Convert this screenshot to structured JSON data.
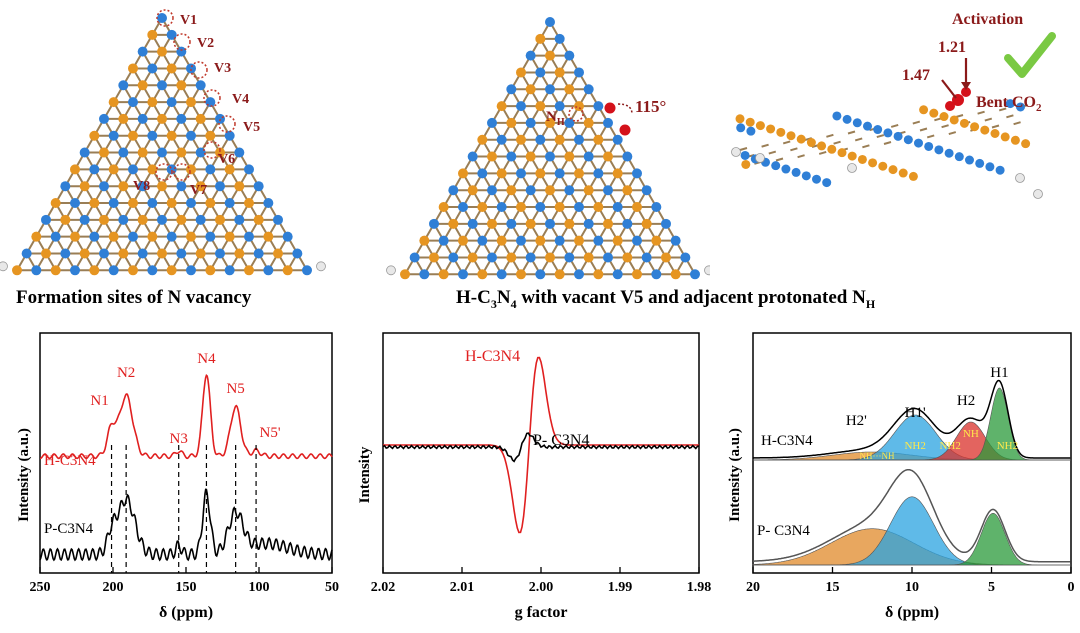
{
  "top": {
    "caption_left": "Formation sites of N vacancy",
    "caption_right": "H-C3N4 with vacant V5 and adjacent protonated NH",
    "vacancy_labels": [
      "V1",
      "V2",
      "V3",
      "V4",
      "V5",
      "V6",
      "V7",
      "V8"
    ],
    "middle_labels": {
      "nh": "NH",
      "angle": "115°"
    },
    "right_labels": {
      "activation": "Activation",
      "d1": "1.21",
      "d2": "1.47",
      "co2": "Bent CO2"
    }
  },
  "chart_data": [
    {
      "type": "line",
      "xlabel": "δ (ppm)",
      "ylabel": "Intensity (a.u.)",
      "xlim": [
        250,
        50
      ],
      "x_reversed": true,
      "xticks": [
        "250",
        "200",
        "150",
        "100",
        "50"
      ],
      "series": [
        {
          "name": "H-C3N4",
          "color": "#e02020",
          "peaks": [
            {
              "label": "N1",
              "x": 201
            },
            {
              "label": "N2",
              "x": 191
            },
            {
              "label": "N3",
              "x": 155
            },
            {
              "label": "N4",
              "x": 136
            },
            {
              "label": "N5",
              "x": 116
            },
            {
              "label": "N5'",
              "x": 102
            }
          ]
        },
        {
          "name": "P-C3N4",
          "color": "#000000"
        }
      ],
      "dashed_lines_x": [
        201,
        191,
        155,
        136,
        116,
        102
      ]
    },
    {
      "type": "line",
      "xlabel": "g factor",
      "ylabel": "Intensity",
      "xlim": [
        2.02,
        1.98
      ],
      "x_reversed": true,
      "xticks": [
        "2.02",
        "2.01",
        "2.00",
        "1.99",
        "1.98"
      ],
      "series": [
        {
          "name": "H-C3N4",
          "color": "#e02020"
        },
        {
          "name": "P- C3N4",
          "color": "#000000"
        }
      ]
    },
    {
      "type": "area",
      "xlabel": "δ (ppm)",
      "ylabel": "Intensity (a.u.)",
      "xlim": [
        20,
        0
      ],
      "x_reversed": true,
      "xticks": [
        "20",
        "15",
        "10",
        "5",
        "0"
      ],
      "series": [
        {
          "name": "H-C3N4"
        },
        {
          "name": "P- C3N4"
        }
      ],
      "peak_labels": [
        "H1",
        "H1'",
        "H2",
        "H2'"
      ],
      "component_labels": [
        "NH2",
        "NH2",
        "NH",
        "NH2",
        "NH···NH"
      ]
    }
  ]
}
